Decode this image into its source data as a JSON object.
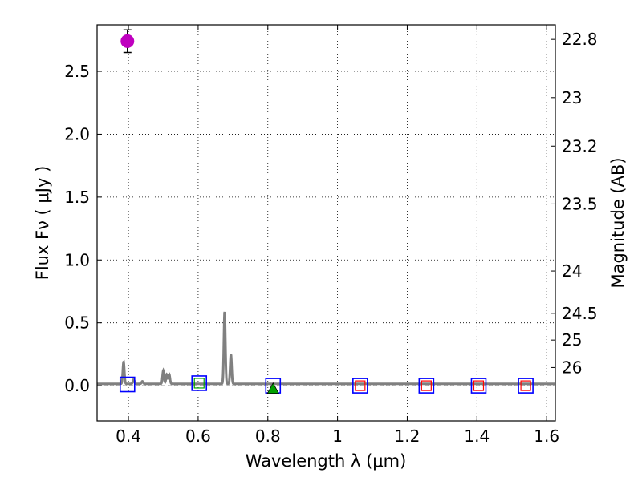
{
  "chart_data": {
    "type": "scatter",
    "xlabel": "Wavelength  λ (μm)",
    "ylabel": "Flux  Fν  ( μJy )",
    "y2label": "Magnitude (AB)",
    "xlim": [
      0.31,
      1.625
    ],
    "ylim": [
      -0.28,
      2.87
    ],
    "grid": true,
    "x_ticks": [
      0.4,
      0.6,
      0.8,
      1.0,
      1.2,
      1.4,
      1.6
    ],
    "x_tick_labels": [
      "0.4",
      "0.6",
      "0.8",
      "1",
      "1.2",
      "1.4",
      "1.6"
    ],
    "y_ticks": [
      0.0,
      0.5,
      1.0,
      1.5,
      2.0,
      2.5
    ],
    "y_tick_labels": [
      "0.0",
      "0.5",
      "1.0",
      "1.5",
      "2.0",
      "2.5"
    ],
    "y2_ticks": [
      22.8,
      23.0,
      23.2,
      23.5,
      24.0,
      24.5,
      25.0,
      26.0
    ],
    "y2_tick_labels": [
      "22.8",
      "23",
      "23.2",
      "23.5",
      "24",
      "24.5",
      "25",
      "26"
    ],
    "measured": {
      "x": 0.397,
      "y": 2.74,
      "yerr": 0.09,
      "color": "#bf00bf"
    },
    "upper_limit": {
      "x": 0.815,
      "y": -0.01,
      "color": "#00a000"
    },
    "blue_squares": {
      "x": [
        0.397,
        0.603,
        0.815,
        1.065,
        1.255,
        1.405,
        1.54
      ],
      "y": [
        0.01,
        0.02,
        0.0,
        0.0,
        0.0,
        0.0,
        0.0
      ],
      "color": "#0000ff"
    },
    "red_squares": {
      "x": [
        1.065,
        1.255,
        1.405,
        1.54
      ],
      "y": [
        0.0,
        0.0,
        0.0,
        0.0
      ],
      "color": "#ff0000"
    },
    "green_squares": {
      "x": [
        0.603
      ],
      "y": [
        0.02
      ],
      "color": "#00a000"
    },
    "model_spectrum": {
      "color": "#808080",
      "baseline": 0.015,
      "lines": [
        {
          "x": 0.386,
          "peak": 0.19
        },
        {
          "x": 0.415,
          "peak": 0.05
        },
        {
          "x": 0.44,
          "peak": 0.035
        },
        {
          "x": 0.5,
          "peak": 0.12
        },
        {
          "x": 0.51,
          "peak": 0.09
        },
        {
          "x": 0.517,
          "peak": 0.09
        },
        {
          "x": 0.676,
          "peak": 0.59
        },
        {
          "x": 0.694,
          "peak": 0.25
        }
      ]
    },
    "zero_line_color": "#808080"
  }
}
